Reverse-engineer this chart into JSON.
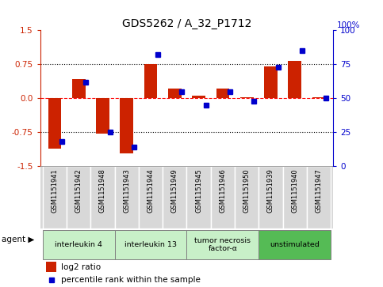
{
  "title": "GDS5262 / A_32_P1712",
  "samples": [
    "GSM1151941",
    "GSM1151942",
    "GSM1151948",
    "GSM1151943",
    "GSM1151944",
    "GSM1151949",
    "GSM1151945",
    "GSM1151946",
    "GSM1151950",
    "GSM1151939",
    "GSM1151940",
    "GSM1151947"
  ],
  "log2_ratio": [
    -1.1,
    0.42,
    -0.78,
    -1.22,
    0.75,
    0.22,
    0.05,
    0.22,
    0.02,
    0.7,
    0.82,
    0.02
  ],
  "percentile_rank": [
    18,
    62,
    25,
    14,
    82,
    55,
    45,
    55,
    48,
    73,
    85,
    50
  ],
  "agents": [
    {
      "label": "interleukin 4",
      "start": 0,
      "end": 3,
      "color": "#c8f0c8"
    },
    {
      "label": "interleukin 13",
      "start": 3,
      "end": 6,
      "color": "#c8f0c8"
    },
    {
      "label": "tumor necrosis\nfactor-α",
      "start": 6,
      "end": 9,
      "color": "#c8f0c8"
    },
    {
      "label": "unstimulated",
      "start": 9,
      "end": 12,
      "color": "#66cc66"
    }
  ],
  "ylim": [
    -1.5,
    1.5
  ],
  "yticks_left": [
    -1.5,
    -0.75,
    0.0,
    0.75,
    1.5
  ],
  "yticks_right": [
    0,
    25,
    50,
    75,
    100
  ],
  "red_color": "#cc2200",
  "blue_color": "#0000cc",
  "bg_color": "#d8d8d8",
  "plot_bg": "#ffffff",
  "agent_light_green": "#c8f0c8",
  "agent_dark_green": "#55bb55"
}
